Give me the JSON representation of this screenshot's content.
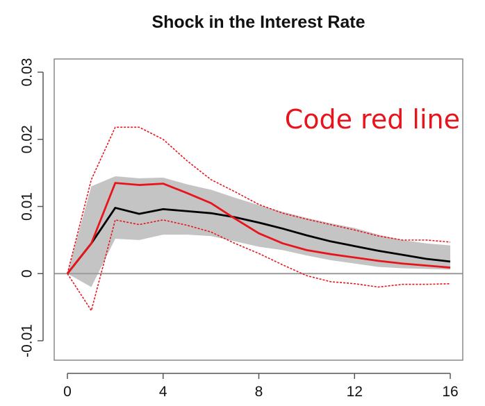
{
  "chart_data": {
    "type": "line",
    "title": "Shock in the Interest Rate",
    "xlabel": "",
    "ylabel": "",
    "x": [
      0,
      1,
      2,
      3,
      4,
      5,
      6,
      7,
      8,
      9,
      10,
      11,
      12,
      13,
      14,
      15,
      16
    ],
    "xlim": [
      0,
      16
    ],
    "ylim": [
      -0.01,
      0.03
    ],
    "x_ticks": [
      0,
      4,
      8,
      12,
      16
    ],
    "x_tick_labels": [
      "0",
      "4",
      "8",
      "12",
      "16"
    ],
    "y_ticks": [
      -0.01,
      0,
      0.01,
      0.02,
      0.03
    ],
    "y_tick_labels": [
      "-0.01",
      "0",
      "0.01",
      "0.02",
      "0.03"
    ],
    "grid": false,
    "reference_line_y": 0,
    "series": [
      {
        "kind": "band",
        "lower": [
          0,
          -0.002,
          0.0052,
          0.005,
          0.0058,
          0.0058,
          0.0056,
          0.0048,
          0.004,
          0.0035,
          0.0027,
          0.002,
          0.0015,
          0.001,
          0.0008,
          0.0007,
          0.0006
        ],
        "upper": [
          0,
          0.013,
          0.0145,
          0.0142,
          0.0143,
          0.0133,
          0.0125,
          0.0113,
          0.0102,
          0.0092,
          0.0083,
          0.0075,
          0.0068,
          0.0058,
          0.005,
          0.0045,
          0.0042
        ],
        "color": "#c4c4c4"
      },
      {
        "kind": "line",
        "values": [
          0,
          0.0045,
          0.0098,
          0.0089,
          0.0096,
          0.0093,
          0.009,
          0.0084,
          0.0076,
          0.0067,
          0.0057,
          0.0048,
          0.0041,
          0.0034,
          0.0028,
          0.0022,
          0.0018
        ],
        "color": "#000000"
      },
      {
        "kind": "line",
        "values": [
          0,
          0.0045,
          0.0135,
          0.0132,
          0.0134,
          0.012,
          0.0105,
          0.0082,
          0.006,
          0.0045,
          0.0035,
          0.0029,
          0.0024,
          0.0019,
          0.0015,
          0.0012,
          0.0009
        ],
        "color": "#e8141c"
      },
      {
        "kind": "dashed",
        "values": [
          0,
          0.014,
          0.0218,
          0.0218,
          0.02,
          0.0168,
          0.014,
          0.0122,
          0.0103,
          0.009,
          0.0081,
          0.0073,
          0.0065,
          0.0056,
          0.005,
          0.005,
          0.0047
        ],
        "color": "#e8141c"
      },
      {
        "kind": "dashed",
        "values": [
          0,
          -0.0055,
          0.008,
          0.0073,
          0.008,
          0.0072,
          0.0062,
          0.0045,
          0.003,
          0.0013,
          -0.0003,
          -0.0012,
          -0.0015,
          -0.002,
          -0.0016,
          -0.0016,
          -0.0015
        ],
        "color": "#e8141c"
      }
    ],
    "annotation": {
      "text": "Code red line",
      "color": "#e8141c"
    }
  }
}
